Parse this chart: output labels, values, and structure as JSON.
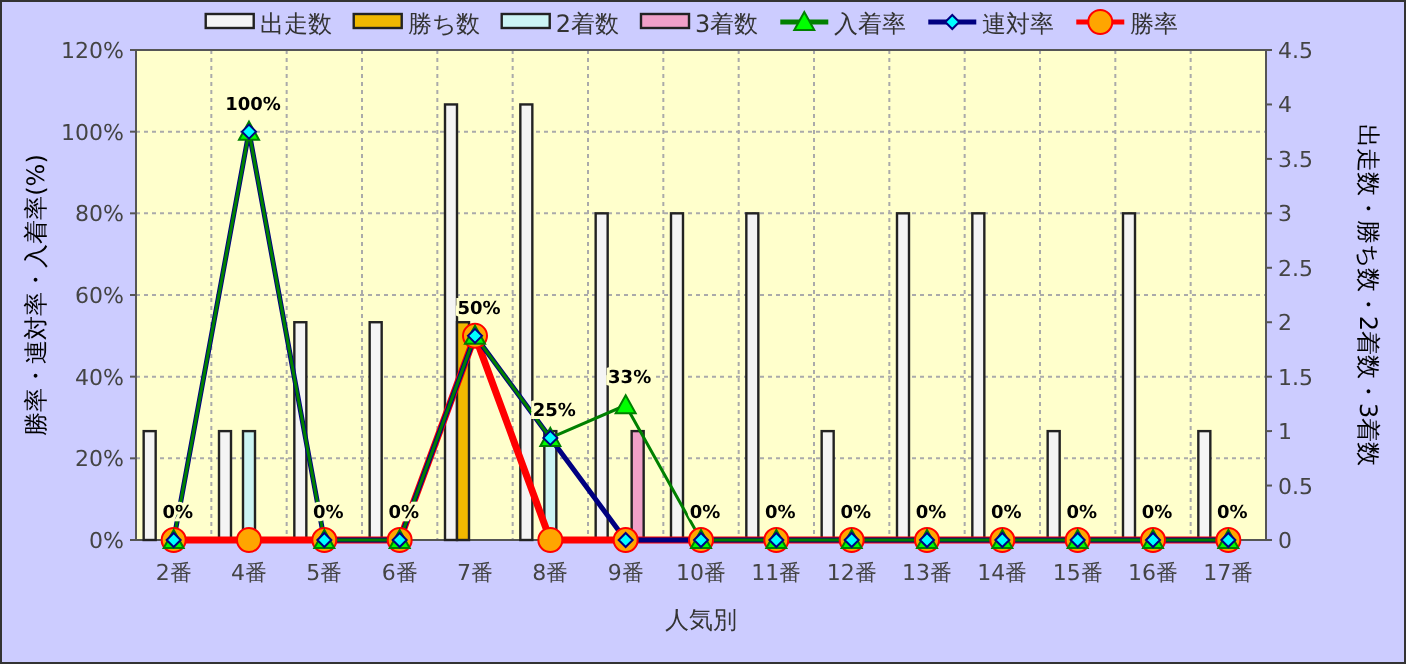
{
  "chart_data": {
    "type": "bar",
    "xlabel": "人気別",
    "ylabel": "勝率・連対率・入着率(%)",
    "y2label": "出走数・勝ち数・2着数・3着数",
    "categories": [
      "2番",
      "4番",
      "5番",
      "6番",
      "7番",
      "8番",
      "9番",
      "10番",
      "11番",
      "12番",
      "13番",
      "14番",
      "15番",
      "16番",
      "17番"
    ],
    "series": [
      {
        "name": "出走数",
        "type": "bar",
        "axis": "y2",
        "color": "#f4f4f4",
        "values": [
          1,
          1,
          2,
          2,
          4,
          4,
          3,
          3,
          3,
          1,
          3,
          3,
          1,
          3,
          1
        ]
      },
      {
        "name": "勝ち数",
        "type": "bar",
        "axis": "y2",
        "color": "#f0b800",
        "values": [
          0,
          0,
          0,
          0,
          2,
          0,
          0,
          0,
          0,
          0,
          0,
          0,
          0,
          0,
          0
        ]
      },
      {
        "name": "2着数",
        "type": "bar",
        "axis": "y2",
        "color": "#ccf4f4",
        "values": [
          0,
          1,
          0,
          0,
          0,
          1,
          0,
          0,
          0,
          0,
          0,
          0,
          0,
          0,
          0
        ]
      },
      {
        "name": "3着数",
        "type": "bar",
        "axis": "y2",
        "color": "#f0a0c8",
        "values": [
          0,
          0,
          0,
          0,
          0,
          0,
          1,
          0,
          0,
          0,
          0,
          0,
          0,
          0,
          0
        ]
      },
      {
        "name": "入着率",
        "type": "line",
        "marker": "triangle",
        "color": "#008000",
        "values": [
          0,
          100,
          0,
          0,
          50,
          25,
          33,
          0,
          0,
          0,
          0,
          0,
          0,
          0,
          0
        ],
        "value_labels": [
          "0%",
          "100%",
          "0%",
          "0%",
          "50%",
          "25%",
          "33%",
          "0%",
          "0%",
          "0%",
          "0%",
          "0%",
          "0%",
          "0%",
          "0%"
        ]
      },
      {
        "name": "連対率",
        "type": "line",
        "marker": "diamond",
        "color": "#000080",
        "values": [
          0,
          100,
          0,
          0,
          50,
          25,
          0,
          0,
          0,
          0,
          0,
          0,
          0,
          0,
          0
        ]
      },
      {
        "name": "勝率",
        "type": "line",
        "marker": "circle",
        "color": "#ff0000",
        "values": [
          0,
          0,
          0,
          0,
          50,
          0,
          0,
          0,
          0,
          0,
          0,
          0,
          0,
          0,
          0
        ]
      }
    ],
    "ylim": [
      0,
      120
    ],
    "yticks": [
      {
        "value": 0,
        "label": "0%"
      },
      {
        "value": 20,
        "label": "20%"
      },
      {
        "value": 40,
        "label": "40%"
      },
      {
        "value": 60,
        "label": "60%"
      },
      {
        "value": 80,
        "label": "80%"
      },
      {
        "value": 100,
        "label": "100%"
      },
      {
        "value": 120,
        "label": "120%"
      }
    ],
    "y2lim": [
      0,
      4.5
    ],
    "y2ticks": [
      0,
      0.5,
      1,
      1.5,
      2,
      2.5,
      3,
      3.5,
      4,
      4.5
    ],
    "grid": true,
    "legend": "top"
  }
}
